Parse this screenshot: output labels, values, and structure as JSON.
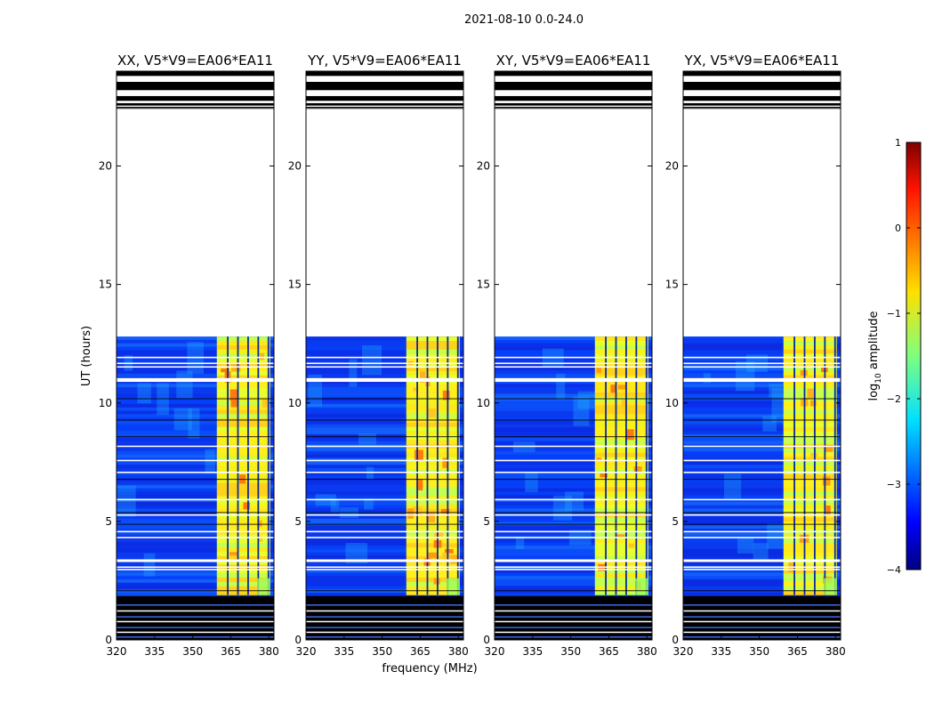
{
  "figure": {
    "suptitle": "2021-08-10 0.0-24.0"
  },
  "chart_data": {
    "type": "heatmap",
    "shared_xlabel": "frequency (MHz)",
    "shared_ylabel": "UT (hours)",
    "xlim": [
      320,
      382
    ],
    "ylim": [
      0,
      24
    ],
    "xticks": [
      320,
      335,
      350,
      365,
      380
    ],
    "yticks": [
      0,
      5,
      10,
      15,
      20
    ],
    "data_time_range_hours": [
      0,
      12.8
    ],
    "high_amplitude_band_mhz": [
      359.5,
      380.5
    ],
    "colormap": "jet",
    "panels": [
      {
        "title": "XX, V5*V9=EA06*EA11",
        "product": "XX"
      },
      {
        "title": "YY, V5*V9=EA06*EA11",
        "product": "YY"
      },
      {
        "title": "XY, V5*V9=EA06*EA11",
        "product": "XY"
      },
      {
        "title": "YX, V5*V9=EA06*EA11",
        "product": "YX"
      }
    ],
    "colorbar": {
      "label": "log",
      "label_sub": "10",
      "label_rest": " amplitude",
      "range": [
        -4,
        1
      ],
      "ticks": [
        1,
        0,
        -1,
        -2,
        -3,
        -4
      ],
      "tick_labels": [
        "1",
        "0",
        "−1",
        "−2",
        "−3",
        "−4"
      ]
    }
  }
}
